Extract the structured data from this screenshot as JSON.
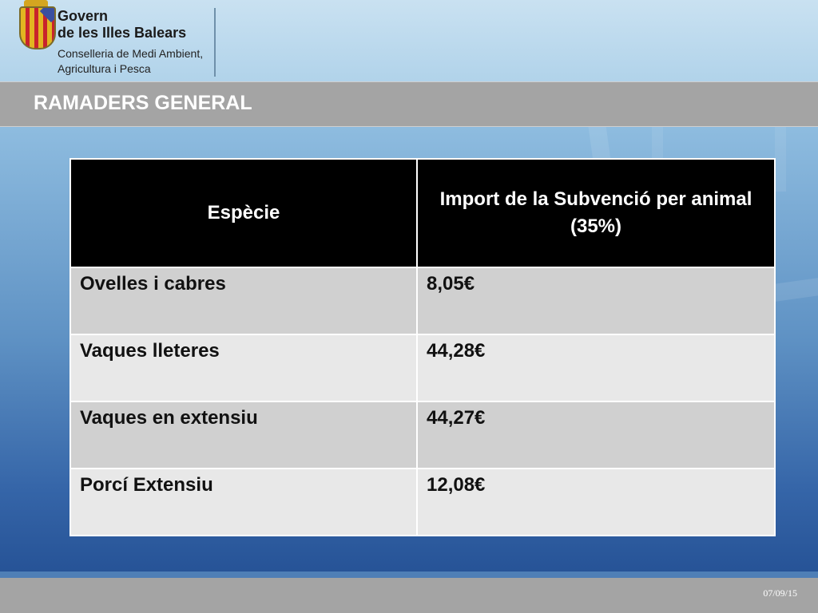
{
  "header": {
    "org_line1": "Govern",
    "org_line2": "de les Illes Balears",
    "dept_line1": "Conselleria de Medi Ambient,",
    "dept_line2": "Agricultura i Pesca",
    "logo_icon": "coat-of-arms-icon"
  },
  "slide": {
    "title": "RAMADERS GENERAL"
  },
  "table": {
    "headers": [
      "Espècie",
      "Import de la Subvenció per animal (35%)"
    ],
    "rows": [
      [
        "Ovelles i cabres",
        "8,05€"
      ],
      [
        "Vaques lleteres",
        "44,28€"
      ],
      [
        "Vaques en extensiu",
        "44,27€"
      ],
      [
        "Porcí Extensiu",
        "12,08€"
      ]
    ]
  },
  "footer": {
    "date": "07/09/15"
  },
  "colors": {
    "title_bar": "#a4a4a4",
    "header_cell": "#000000",
    "row_odd": "#d0d0d0",
    "row_even": "#e8e8e8"
  }
}
